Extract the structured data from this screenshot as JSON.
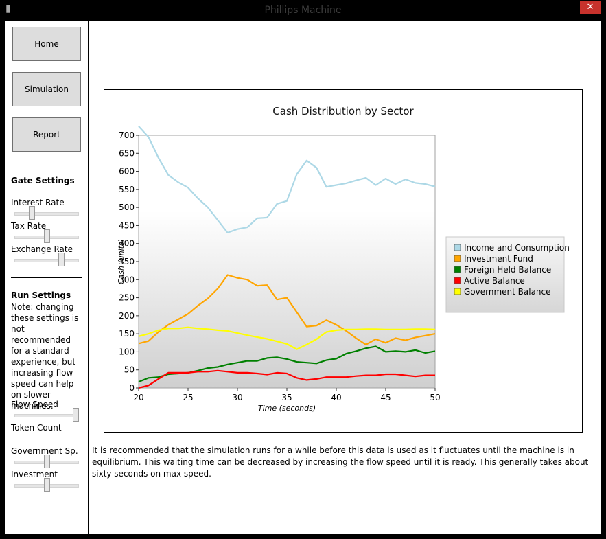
{
  "window": {
    "title": "Phillips Machine",
    "close_label": "✕"
  },
  "nav": {
    "home": "Home",
    "simulation": "Simulation",
    "report": "Report"
  },
  "gate": {
    "title": "Gate Settings",
    "interest_label": "Interest Rate",
    "interest_value": 0.25,
    "tax_label": "Tax Rate",
    "tax_value": 0.5,
    "exchange_label": "Exchange Rate",
    "exchange_value": 0.75
  },
  "run": {
    "title": "Run Settings",
    "note": "Note: changing these settings is not recommended for a standard experience, but increasing flow speed can help on slower machines.",
    "flow_label": "Flow Speed",
    "flow_value": 1.0,
    "token_label": "Token Count",
    "gov_label": "Government Sp.",
    "gov_value": 0.5,
    "invest_label": "Investment",
    "invest_value": 0.5
  },
  "info_text": "It is recommended that the simulation runs for a while before this data is used as it fluctuates until the machine is in equilibrium. This waiting time can be decreased by increasing the flow speed until it is ready. This generally takes about sixty seconds on max speed.",
  "chart_data": {
    "type": "line",
    "title": "Cash Distribution by Sector",
    "xlabel": "Time (seconds)",
    "ylabel": "Cash (units)",
    "xlim": [
      20,
      50
    ],
    "ylim": [
      0,
      700
    ],
    "xticks": [
      20,
      25,
      30,
      35,
      40,
      45,
      50
    ],
    "yticks": [
      0,
      50,
      100,
      150,
      200,
      250,
      300,
      350,
      400,
      450,
      500,
      550,
      600,
      650,
      700
    ],
    "legend_position": "right",
    "x": [
      20,
      21,
      22,
      23,
      24,
      25,
      26,
      27,
      28,
      29,
      30,
      31,
      32,
      33,
      34,
      35,
      36,
      37,
      38,
      39,
      40,
      41,
      42,
      43,
      44,
      45,
      46,
      47,
      48,
      49,
      50
    ],
    "series": [
      {
        "name": "Income and Consumption",
        "color": "#ADD8E6",
        "values": [
          725,
          695,
          638,
          590,
          570,
          555,
          525,
          500,
          465,
          430,
          440,
          445,
          470,
          472,
          510,
          518,
          592,
          630,
          610,
          557,
          562,
          567,
          575,
          582,
          562,
          580,
          565,
          578,
          568,
          565,
          558
        ]
      },
      {
        "name": "Investment Fund",
        "color": "#FFA500",
        "values": [
          123,
          130,
          155,
          175,
          190,
          205,
          228,
          248,
          275,
          313,
          305,
          300,
          283,
          285,
          245,
          250,
          210,
          170,
          173,
          188,
          175,
          158,
          138,
          120,
          135,
          125,
          138,
          132,
          140,
          145,
          150
        ]
      },
      {
        "name": "Foreign Held Balance",
        "color": "#008000",
        "values": [
          17,
          28,
          30,
          38,
          40,
          42,
          48,
          55,
          58,
          65,
          70,
          75,
          75,
          83,
          85,
          80,
          72,
          70,
          68,
          77,
          81,
          95,
          102,
          110,
          115,
          100,
          102,
          100,
          105,
          97,
          102
        ]
      },
      {
        "name": "Active Balance",
        "color": "#FF0000",
        "values": [
          0,
          7,
          25,
          42,
          42,
          42,
          45,
          45,
          48,
          45,
          42,
          42,
          40,
          37,
          42,
          40,
          28,
          22,
          25,
          30,
          30,
          30,
          33,
          35,
          35,
          38,
          38,
          35,
          32,
          35,
          35
        ]
      },
      {
        "name": "Government Balance",
        "color": "#FFFF00",
        "values": [
          143,
          150,
          160,
          165,
          165,
          168,
          165,
          163,
          160,
          158,
          152,
          146,
          141,
          136,
          129,
          122,
          107,
          120,
          135,
          155,
          160,
          162,
          162,
          163,
          163,
          162,
          162,
          162,
          163,
          163,
          162
        ]
      }
    ]
  }
}
